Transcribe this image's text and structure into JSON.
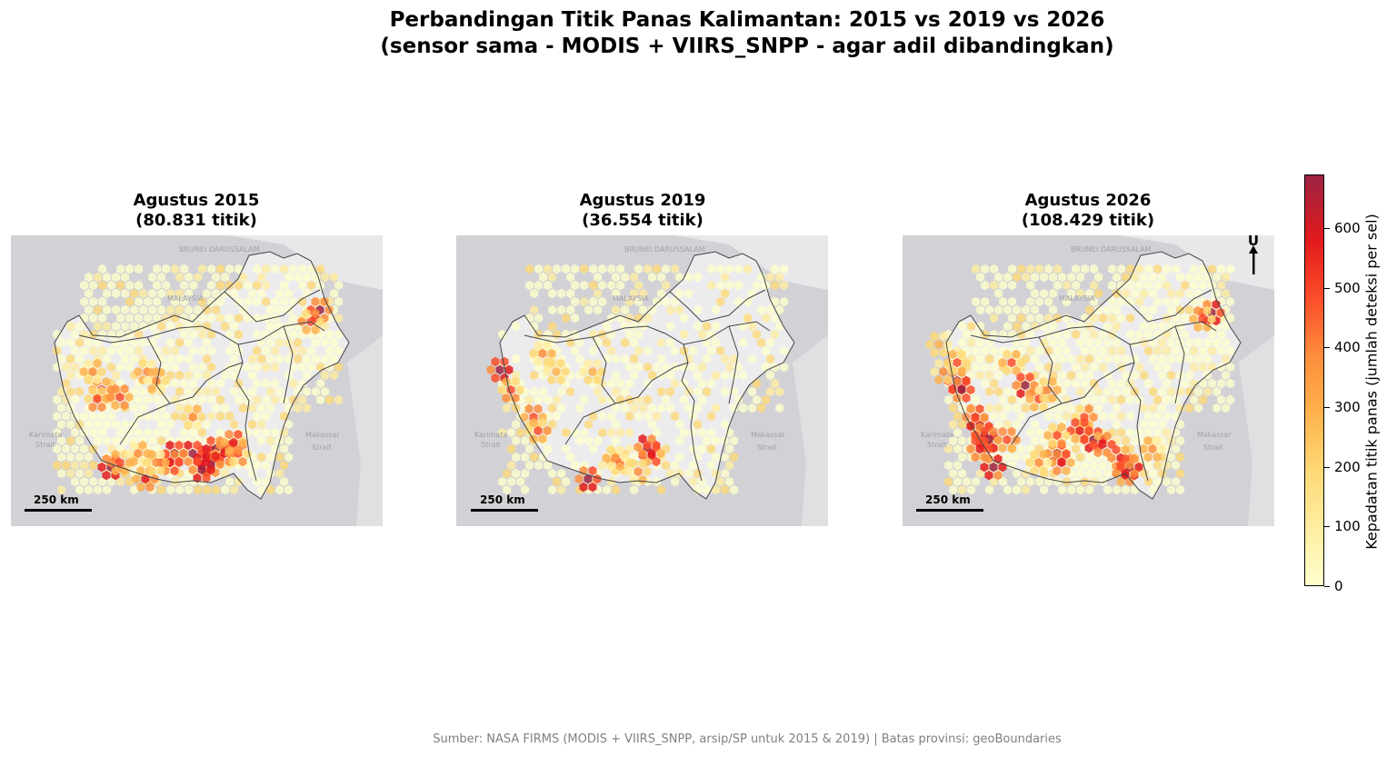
{
  "title": {
    "line1": "Perbandingan Titik Panas Kalimantan: 2015 vs 2019 vs 2026",
    "line2": "(sensor sama - MODIS + VIIRS_SNPP - agar adil dibandingkan)"
  },
  "panels": [
    {
      "title": "Agustus 2015",
      "count": "(80.831 titik)"
    },
    {
      "title": "Agustus 2019",
      "count": "(36.554 titik)"
    },
    {
      "title": "Agustus 2026",
      "count": "(108.429 titik)"
    }
  ],
  "map_labels": {
    "brunei": "BRUNEI DARUSSALAM",
    "malaysia": "MALAYSIA",
    "karimata": "Karimata",
    "karimata2": "Strait",
    "makassar": "Makassar",
    "makassar2": "Strait"
  },
  "scalebar_label": "250 km",
  "north_label": "U",
  "colorbar": {
    "label": "Kepadatan titik panas (jumlah deteksi per sel)",
    "ticks": [
      "0",
      "100",
      "200",
      "300",
      "400",
      "500",
      "600"
    ],
    "min": 0,
    "max": 690,
    "colors": [
      "#ffffcc",
      "#ffeda0",
      "#fed976",
      "#feb24c",
      "#fd8d3c",
      "#fc4e2a",
      "#e31a1c",
      "#9b2242"
    ]
  },
  "source": "Sumber: NASA FIRMS (MODIS + VIIRS_SNPP, arsip/SP untuk 2015 & 2019) | Batas provinsi: geoBoundaries"
}
